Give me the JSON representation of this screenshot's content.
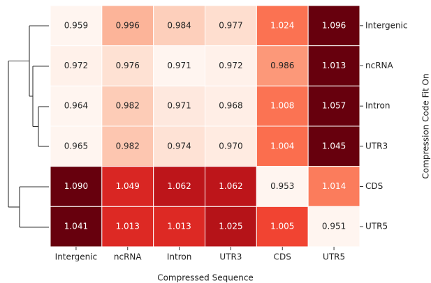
{
  "chart_data": {
    "type": "heatmap",
    "xlabel": "Compressed Sequence",
    "ylabel": "Compression Code Fit On",
    "columns": [
      "Intergenic",
      "ncRNA",
      "Intron",
      "UTR3",
      "CDS",
      "UTR5"
    ],
    "rows": [
      "Intergenic",
      "ncRNA",
      "Intron",
      "UTR3",
      "CDS",
      "UTR5"
    ],
    "values": [
      [
        0.959,
        0.996,
        0.984,
        0.977,
        1.024,
        1.096
      ],
      [
        0.972,
        0.976,
        0.971,
        0.972,
        0.986,
        1.013
      ],
      [
        0.964,
        0.982,
        0.971,
        0.968,
        1.008,
        1.057
      ],
      [
        0.965,
        0.982,
        0.974,
        0.97,
        1.004,
        1.045
      ],
      [
        1.09,
        1.049,
        1.062,
        1.062,
        0.953,
        1.014
      ],
      [
        1.041,
        1.013,
        1.013,
        1.025,
        1.005,
        0.951
      ]
    ],
    "value_labels": [
      [
        "0.959",
        "0.996",
        "0.984",
        "0.977",
        "1.024",
        "1.096"
      ],
      [
        "0.972",
        "0.976",
        "0.971",
        "0.972",
        "0.986",
        "1.013"
      ],
      [
        "0.964",
        "0.982",
        "0.971",
        "0.968",
        "1.008",
        "1.057"
      ],
      [
        "0.965",
        "0.982",
        "0.974",
        "0.970",
        "1.004",
        "1.045"
      ],
      [
        "1.090",
        "1.049",
        "1.062",
        "1.062",
        "0.953",
        "1.014"
      ],
      [
        "1.041",
        "1.013",
        "1.013",
        "1.025",
        "1.005",
        "0.951"
      ]
    ],
    "normalize": "row",
    "colormap": [
      "#fff5f0",
      "#fee0d2",
      "#fcbba1",
      "#fc9272",
      "#fb6a4a",
      "#ef3b2c",
      "#cb181d",
      "#a50f15",
      "#67000d"
    ]
  }
}
